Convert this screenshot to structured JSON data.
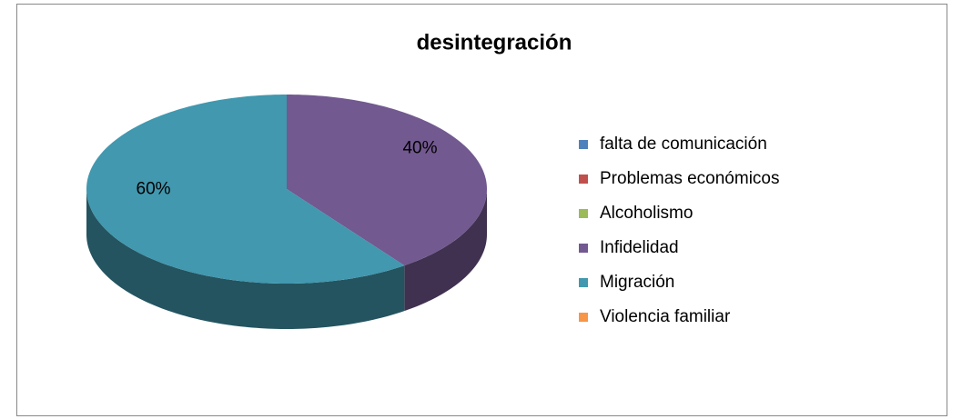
{
  "chart_data": {
    "type": "pie",
    "title": "desintegración",
    "categories": [
      "falta de comunicación",
      "Problemas económicos",
      "Alcoholismo",
      "Infidelidad",
      "Migración",
      "Violencia familiar"
    ],
    "values": [
      0,
      0,
      0,
      40,
      60,
      0
    ],
    "value_labels": [
      null,
      null,
      null,
      "40%",
      "60%",
      null
    ],
    "colors": [
      "#4f81bd",
      "#c0504d",
      "#9bbb59",
      "#725990",
      "#4198af",
      "#f79646"
    ],
    "legend": "right"
  }
}
